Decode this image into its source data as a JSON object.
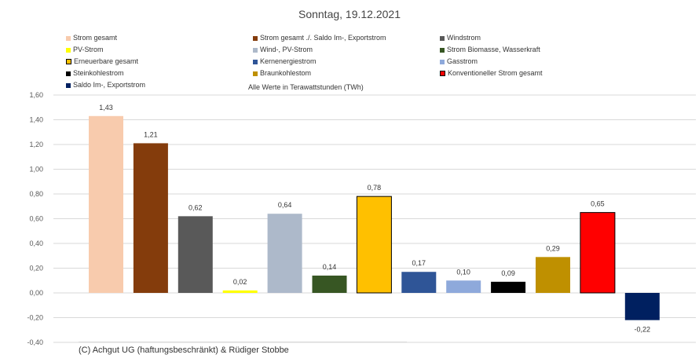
{
  "title": "Sonntag, 19.12.2021",
  "subtitle": "Alle Werte in Terawattstunden (TWh)",
  "footer": "(C) Achgut UG (haftungsbeschränkt) & Rüdiger Stobbe",
  "chart_data": {
    "type": "bar",
    "title": "Sonntag, 19.12.2021",
    "subtitle": "Alle Werte in Terawattstunden (TWh)",
    "ylim": [
      -0.4,
      1.6
    ],
    "yticks": [
      "1,60",
      "1,40",
      "1,20",
      "1,00",
      "0,80",
      "0,60",
      "0,40",
      "0,20",
      "0,00",
      "-0,20",
      "-0,40"
    ],
    "ytick_values": [
      1.6,
      1.4,
      1.2,
      1.0,
      0.8,
      0.6,
      0.4,
      0.2,
      0.0,
      -0.2,
      -0.4
    ],
    "grid": true,
    "legend_position": "top",
    "series": [
      {
        "name": "Strom gesamt",
        "value": 1.43,
        "label": "1,43",
        "color": "#F8CBAD",
        "outlined": false
      },
      {
        "name": "Strom gesamt ./. Saldo Im-, Exportstrom",
        "value": 1.21,
        "label": "1,21",
        "color": "#843C0C",
        "outlined": false
      },
      {
        "name": "Windstrom",
        "value": 0.62,
        "label": "0,62",
        "color": "#595959",
        "outlined": false
      },
      {
        "name": "PV-Strom",
        "value": 0.02,
        "label": "0,02",
        "color": "#FFFF00",
        "outlined": false
      },
      {
        "name": "Wind-, PV-Strom",
        "value": 0.64,
        "label": "0,64",
        "color": "#ADB9CA",
        "outlined": false
      },
      {
        "name": "Strom Biomasse, Wasserkraft",
        "value": 0.14,
        "label": "0,14",
        "color": "#375623",
        "outlined": false
      },
      {
        "name": "Erneuerbare gesamt",
        "value": 0.78,
        "label": "0,78",
        "color": "#FFC000",
        "outlined": true
      },
      {
        "name": "Kernenergiestrom",
        "value": 0.17,
        "label": "0,17",
        "color": "#2F5597",
        "outlined": false
      },
      {
        "name": "Gasstrom",
        "value": 0.1,
        "label": "0,10",
        "color": "#8EA9DB",
        "outlined": false
      },
      {
        "name": "Steinkohlestrom",
        "value": 0.09,
        "label": "0,09",
        "color": "#000000",
        "outlined": false
      },
      {
        "name": "Braunkohlestom",
        "value": 0.29,
        "label": "0,29",
        "color": "#BF9000",
        "outlined": false
      },
      {
        "name": "Konventioneller Strom gesamt",
        "value": 0.65,
        "label": "0,65",
        "color": "#FF0000",
        "outlined": true
      },
      {
        "name": "Saldo Im-, Exportstrom",
        "value": -0.22,
        "label": "-0,22",
        "color": "#002060",
        "outlined": false
      }
    ]
  }
}
